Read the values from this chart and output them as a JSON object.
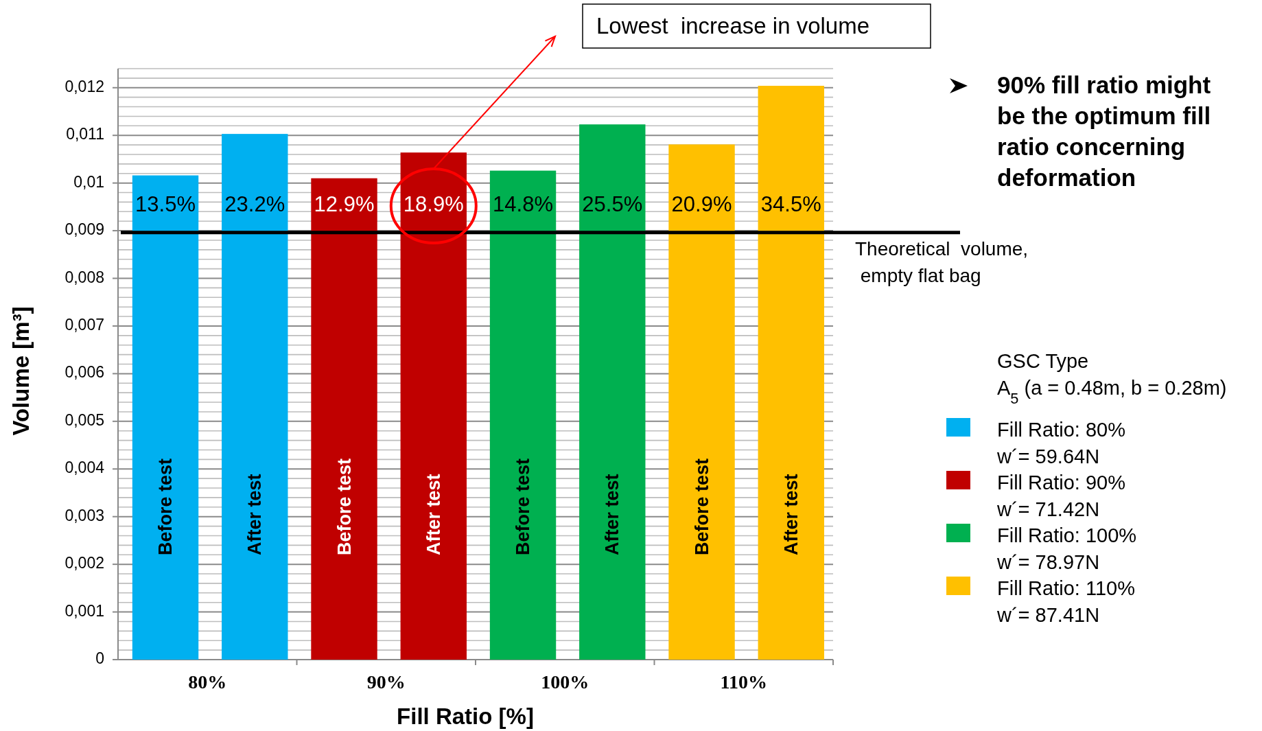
{
  "chart_data": {
    "type": "bar",
    "xlabel": "Fill Ratio [%]",
    "ylabel": "Volume [m³]",
    "categories": [
      "80%",
      "90%",
      "100%",
      "110%"
    ],
    "series": [
      {
        "name": "Before test",
        "colors": [
          "#00b0f0",
          "#c00000",
          "#00b050",
          "#ffc000"
        ],
        "values": [
          0.01016,
          0.0101,
          0.01026,
          0.01081
        ]
      },
      {
        "name": "After test",
        "colors": [
          "#00b0f0",
          "#c00000",
          "#00b050",
          "#ffc000"
        ],
        "values": [
          0.01103,
          0.01064,
          0.01123,
          0.01204
        ]
      }
    ],
    "ylim": [
      0,
      0.0124
    ],
    "yticks": [
      {
        "value": 0,
        "label": "0"
      },
      {
        "value": 0.0002,
        "label": null
      },
      {
        "value": 0.0004,
        "label": null
      },
      {
        "value": 0.0006,
        "label": null
      },
      {
        "value": 0.0008,
        "label": null
      },
      {
        "value": 0.001,
        "label": "0,001"
      },
      {
        "value": 0.0012,
        "label": null
      },
      {
        "value": 0.0014,
        "label": null
      },
      {
        "value": 0.0016,
        "label": null
      },
      {
        "value": 0.0018,
        "label": null
      },
      {
        "value": 0.002,
        "label": "0,002"
      },
      {
        "value": 0.0022,
        "label": null
      },
      {
        "value": 0.0024,
        "label": null
      },
      {
        "value": 0.0026,
        "label": null
      },
      {
        "value": 0.0028,
        "label": null
      },
      {
        "value": 0.003,
        "label": "0,003"
      },
      {
        "value": 0.0032,
        "label": null
      },
      {
        "value": 0.0034,
        "label": null
      },
      {
        "value": 0.0036,
        "label": null
      },
      {
        "value": 0.0038,
        "label": null
      },
      {
        "value": 0.004,
        "label": "0,004"
      },
      {
        "value": 0.0042,
        "label": null
      },
      {
        "value": 0.0044,
        "label": null
      },
      {
        "value": 0.0046,
        "label": null
      },
      {
        "value": 0.0048,
        "label": null
      },
      {
        "value": 0.005,
        "label": "0,005"
      },
      {
        "value": 0.0052,
        "label": null
      },
      {
        "value": 0.0054,
        "label": null
      },
      {
        "value": 0.0056,
        "label": null
      },
      {
        "value": 0.0058,
        "label": null
      },
      {
        "value": 0.006,
        "label": "0,006"
      },
      {
        "value": 0.0062,
        "label": null
      },
      {
        "value": 0.0064,
        "label": null
      },
      {
        "value": 0.0066,
        "label": null
      },
      {
        "value": 0.0068,
        "label": null
      },
      {
        "value": 0.007,
        "label": "0,007"
      },
      {
        "value": 0.0072,
        "label": null
      },
      {
        "value": 0.0074,
        "label": null
      },
      {
        "value": 0.0076,
        "label": null
      },
      {
        "value": 0.0078,
        "label": null
      },
      {
        "value": 0.008,
        "label": "0,008"
      },
      {
        "value": 0.0082,
        "label": null
      },
      {
        "value": 0.0084,
        "label": null
      },
      {
        "value": 0.0086,
        "label": null
      },
      {
        "value": 0.0088,
        "label": null
      },
      {
        "value": 0.009,
        "label": "0,009"
      },
      {
        "value": 0.0092,
        "label": null
      },
      {
        "value": 0.0094,
        "label": null
      },
      {
        "value": 0.0096,
        "label": null
      },
      {
        "value": 0.0098,
        "label": null
      },
      {
        "value": 0.01,
        "label": "0,01"
      },
      {
        "value": 0.0102,
        "label": null
      },
      {
        "value": 0.0104,
        "label": null
      },
      {
        "value": 0.0106,
        "label": null
      },
      {
        "value": 0.0108,
        "label": null
      },
      {
        "value": 0.011,
        "label": "0,011"
      },
      {
        "value": 0.0112,
        "label": null
      },
      {
        "value": 0.0114,
        "label": null
      },
      {
        "value": 0.0116,
        "label": null
      },
      {
        "value": 0.0118,
        "label": null
      },
      {
        "value": 0.012,
        "label": "0,012"
      },
      {
        "value": 0.0122,
        "label": null
      },
      {
        "value": 0.0124,
        "label": null
      }
    ],
    "grid": "y",
    "ref_lines": [
      {
        "axis": "y",
        "value": 0.00896,
        "label": "Theoretical  volume,\n empty flat bag",
        "color": "#000000"
      }
    ],
    "legend_title": "GSC Type\nA$_{5}$ (a = 0.48m, b = 0.28m)",
    "annotations": [
      "Lowest  increase in volume",
      "90% fill ratio might\nbe the optimum fill\nratio concerning\ndeformation",
      "Fill Ratio: 80%\nw´= 59.64N",
      "Fill Ratio: 90%\nw´= 71.42N",
      "Fill Ratio: 100%\nw´= 78.97N",
      "Fill Ratio: 110%\nw´= 87.41N",
      "13.5%",
      "23.2%",
      "12.9%",
      "18.9%",
      "14.8%",
      "25.5%",
      "20.9%",
      "34.5%"
    ]
  }
}
